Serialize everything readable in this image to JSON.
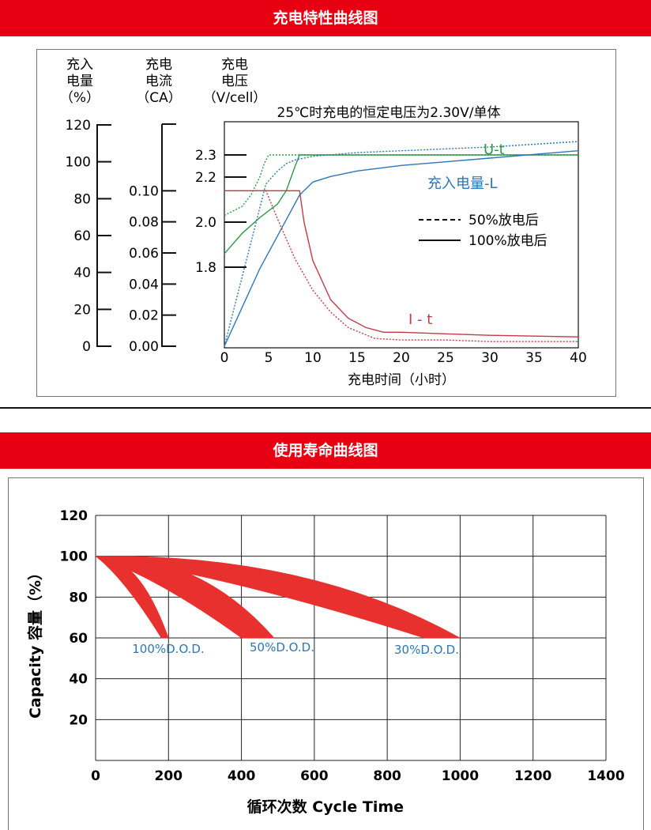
{
  "colors": {
    "banner": "#e60012",
    "u_curve": "#2e9a4a",
    "l_curve": "#2d76b8",
    "i_curve": "#c23a47",
    "band": "#e8302f",
    "dod_label": "#2d76b8"
  },
  "section1": {
    "title": "充电特性曲线图",
    "axes_headers": {
      "capacity": [
        "充入",
        "电量",
        "（%）"
      ],
      "current": [
        "充电",
        "电流",
        "（CA）"
      ],
      "voltage": [
        "充电",
        "电压",
        "（V/cell）"
      ]
    },
    "chart_data": {
      "type": "line",
      "title": "25℃时充电的恒定电压为2.30V/单体",
      "xlabel": "充电时间（小时）",
      "xlim": [
        0,
        40
      ],
      "xticks": [
        "0",
        "5",
        "10",
        "15",
        "20",
        "25",
        "30",
        "35",
        "40"
      ],
      "capacity_axis": {
        "range": [
          0,
          120
        ],
        "ticks": [
          "0",
          "20",
          "40",
          "60",
          "80",
          "100",
          "120"
        ]
      },
      "current_axis": {
        "range": [
          0,
          0.12
        ],
        "ticks": [
          "0.00",
          "0.02",
          "0.04",
          "0.06",
          "0.08",
          "0.10"
        ]
      },
      "voltage_axis": {
        "ticks": [
          "1.8",
          "2.0",
          "2.2",
          "2.3"
        ]
      },
      "curve_labels": {
        "voltage": "U-t",
        "capacity": "充入电量-L",
        "current": "I - t"
      },
      "legend": {
        "dashed": "50%放电后",
        "solid": "100%放电后",
        "position": "center-right"
      },
      "series": [
        {
          "curve": "U-t",
          "line": "solid",
          "x": [
            0,
            2,
            4,
            6,
            7,
            8,
            8.5,
            10,
            20,
            30,
            40
          ],
          "y": [
            1.86,
            1.95,
            2.02,
            2.08,
            2.14,
            2.25,
            2.3,
            2.3,
            2.3,
            2.3,
            2.3
          ]
        },
        {
          "curve": "U-t",
          "line": "dashed",
          "x": [
            0,
            2,
            3,
            4,
            4.5,
            5,
            10,
            20,
            30,
            40
          ],
          "y": [
            2.03,
            2.07,
            2.12,
            2.2,
            2.26,
            2.3,
            2.3,
            2.3,
            2.3,
            2.3
          ]
        },
        {
          "curve": "充入电量-L",
          "line": "solid",
          "x": [
            0,
            4,
            8.5,
            10,
            12,
            15,
            20,
            25,
            30,
            35,
            40
          ],
          "y": [
            0,
            42,
            82,
            89,
            92,
            95,
            98,
            100,
            102,
            104,
            106
          ]
        },
        {
          "curve": "充入电量-L",
          "line": "dashed",
          "x": [
            0,
            4.7,
            6,
            7,
            8,
            10,
            15,
            20,
            30,
            40
          ],
          "y": [
            0,
            88,
            95,
            99,
            101,
            103,
            105,
            106,
            108,
            111
          ]
        },
        {
          "curve": "I - t",
          "line": "solid",
          "x": [
            0,
            8.5,
            9,
            10,
            12,
            14,
            16,
            18,
            20,
            25,
            30,
            40
          ],
          "y": [
            0.1,
            0.1,
            0.08,
            0.055,
            0.03,
            0.018,
            0.012,
            0.009,
            0.009,
            0.008,
            0.007,
            0.006
          ]
        },
        {
          "curve": "I - t",
          "line": "dashed",
          "x": [
            0,
            4.7,
            6,
            8,
            10,
            12,
            14,
            17,
            20,
            25,
            30,
            40
          ],
          "y": [
            0.1,
            0.1,
            0.082,
            0.056,
            0.036,
            0.022,
            0.012,
            0.005,
            0.004,
            0.004,
            0.003,
            0.003
          ]
        }
      ]
    }
  },
  "section2": {
    "title": "使用寿命曲线图",
    "chart_data": {
      "type": "area",
      "xlabel": "循环次数 Cycle Time",
      "ylabel": "Capacity 容量（%）",
      "xlim": [
        0,
        1400
      ],
      "ylim": [
        0,
        120
      ],
      "xticks": [
        "0",
        "200",
        "400",
        "600",
        "800",
        "1000",
        "1200",
        "1400"
      ],
      "yticks": [
        "20",
        "40",
        "60",
        "80",
        "100",
        "120"
      ],
      "grid": true,
      "series": [
        {
          "name": "100%D.O.D.",
          "upper_end": 200,
          "lower_end": 180
        },
        {
          "name": "50%D.O.D.",
          "upper_end": 490,
          "lower_end": 400
        },
        {
          "name": "30%D.O.D.",
          "upper_end": 1000,
          "lower_end": 900
        }
      ]
    }
  }
}
